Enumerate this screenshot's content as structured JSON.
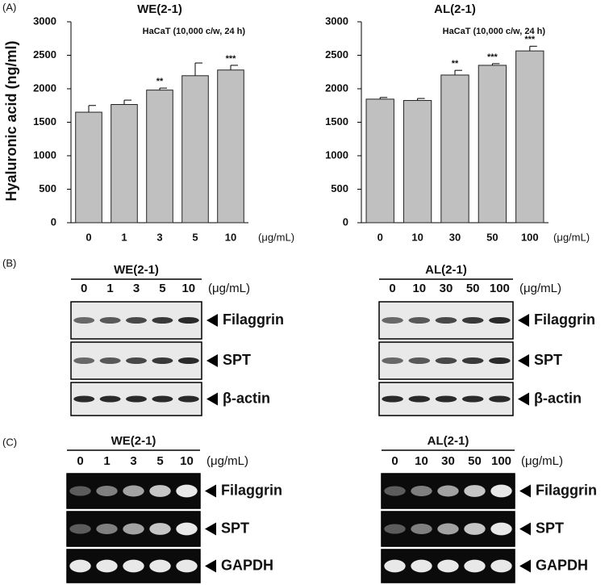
{
  "panel_labels": {
    "a": "(A)",
    "b": "(B)",
    "c": "(C)"
  },
  "chart_data": [
    {
      "type": "bar",
      "title": "WE(2-1)",
      "annotation": "HaCaT (10,000 c/w, 24 h)",
      "y_label": "Hyaluronic acid (ng/ml)",
      "x_unit": "(μg/mL)",
      "categories": [
        "0",
        "1",
        "3",
        "5",
        "10"
      ],
      "values": [
        1650,
        1765,
        1980,
        2195,
        2280
      ],
      "errors": [
        100,
        65,
        30,
        190,
        70
      ],
      "significance": [
        null,
        null,
        "**",
        null,
        "***"
      ],
      "color": "#c0c0c0",
      "ylim": [
        0,
        3000
      ],
      "yticks": [
        0,
        500,
        1000,
        1500,
        2000,
        2500,
        3000
      ]
    },
    {
      "type": "bar",
      "title": "AL(2-1)",
      "annotation": "HaCaT (10,000 c/w, 24 h)",
      "x_unit": "(μg/mL)",
      "categories": [
        "0",
        "10",
        "30",
        "50",
        "100"
      ],
      "values": [
        1845,
        1825,
        2205,
        2350,
        2565
      ],
      "errors": [
        25,
        30,
        70,
        25,
        70
      ],
      "significance": [
        null,
        null,
        "**",
        "***",
        "***"
      ],
      "color": "#c0c0c0",
      "ylim": [
        0,
        3000
      ],
      "yticks": [
        0,
        500,
        1000,
        1500,
        2000,
        2500,
        3000
      ]
    }
  ],
  "western_blot": [
    {
      "title": "WE(2-1)",
      "doses": [
        "0",
        "1",
        "3",
        "5",
        "10"
      ],
      "unit": "(μg/mL)",
      "bands": [
        "Filaggrin",
        "SPT",
        "β-actin"
      ]
    },
    {
      "title": "AL(2-1)",
      "doses": [
        "0",
        "10",
        "30",
        "50",
        "100"
      ],
      "unit": "(μg/mL)",
      "bands": [
        "Filaggrin",
        "SPT",
        "β-actin"
      ]
    }
  ],
  "rt_pcr": [
    {
      "title": "WE(2-1)",
      "doses": [
        "0",
        "1",
        "3",
        "5",
        "10"
      ],
      "unit": "(μg/mL)",
      "bands": [
        "Filaggrin",
        "SPT",
        "GAPDH"
      ]
    },
    {
      "title": "AL(2-1)",
      "doses": [
        "0",
        "10",
        "30",
        "50",
        "100"
      ],
      "unit": "(μg/mL)",
      "bands": [
        "Filaggrin",
        "SPT",
        "GAPDH"
      ]
    }
  ]
}
